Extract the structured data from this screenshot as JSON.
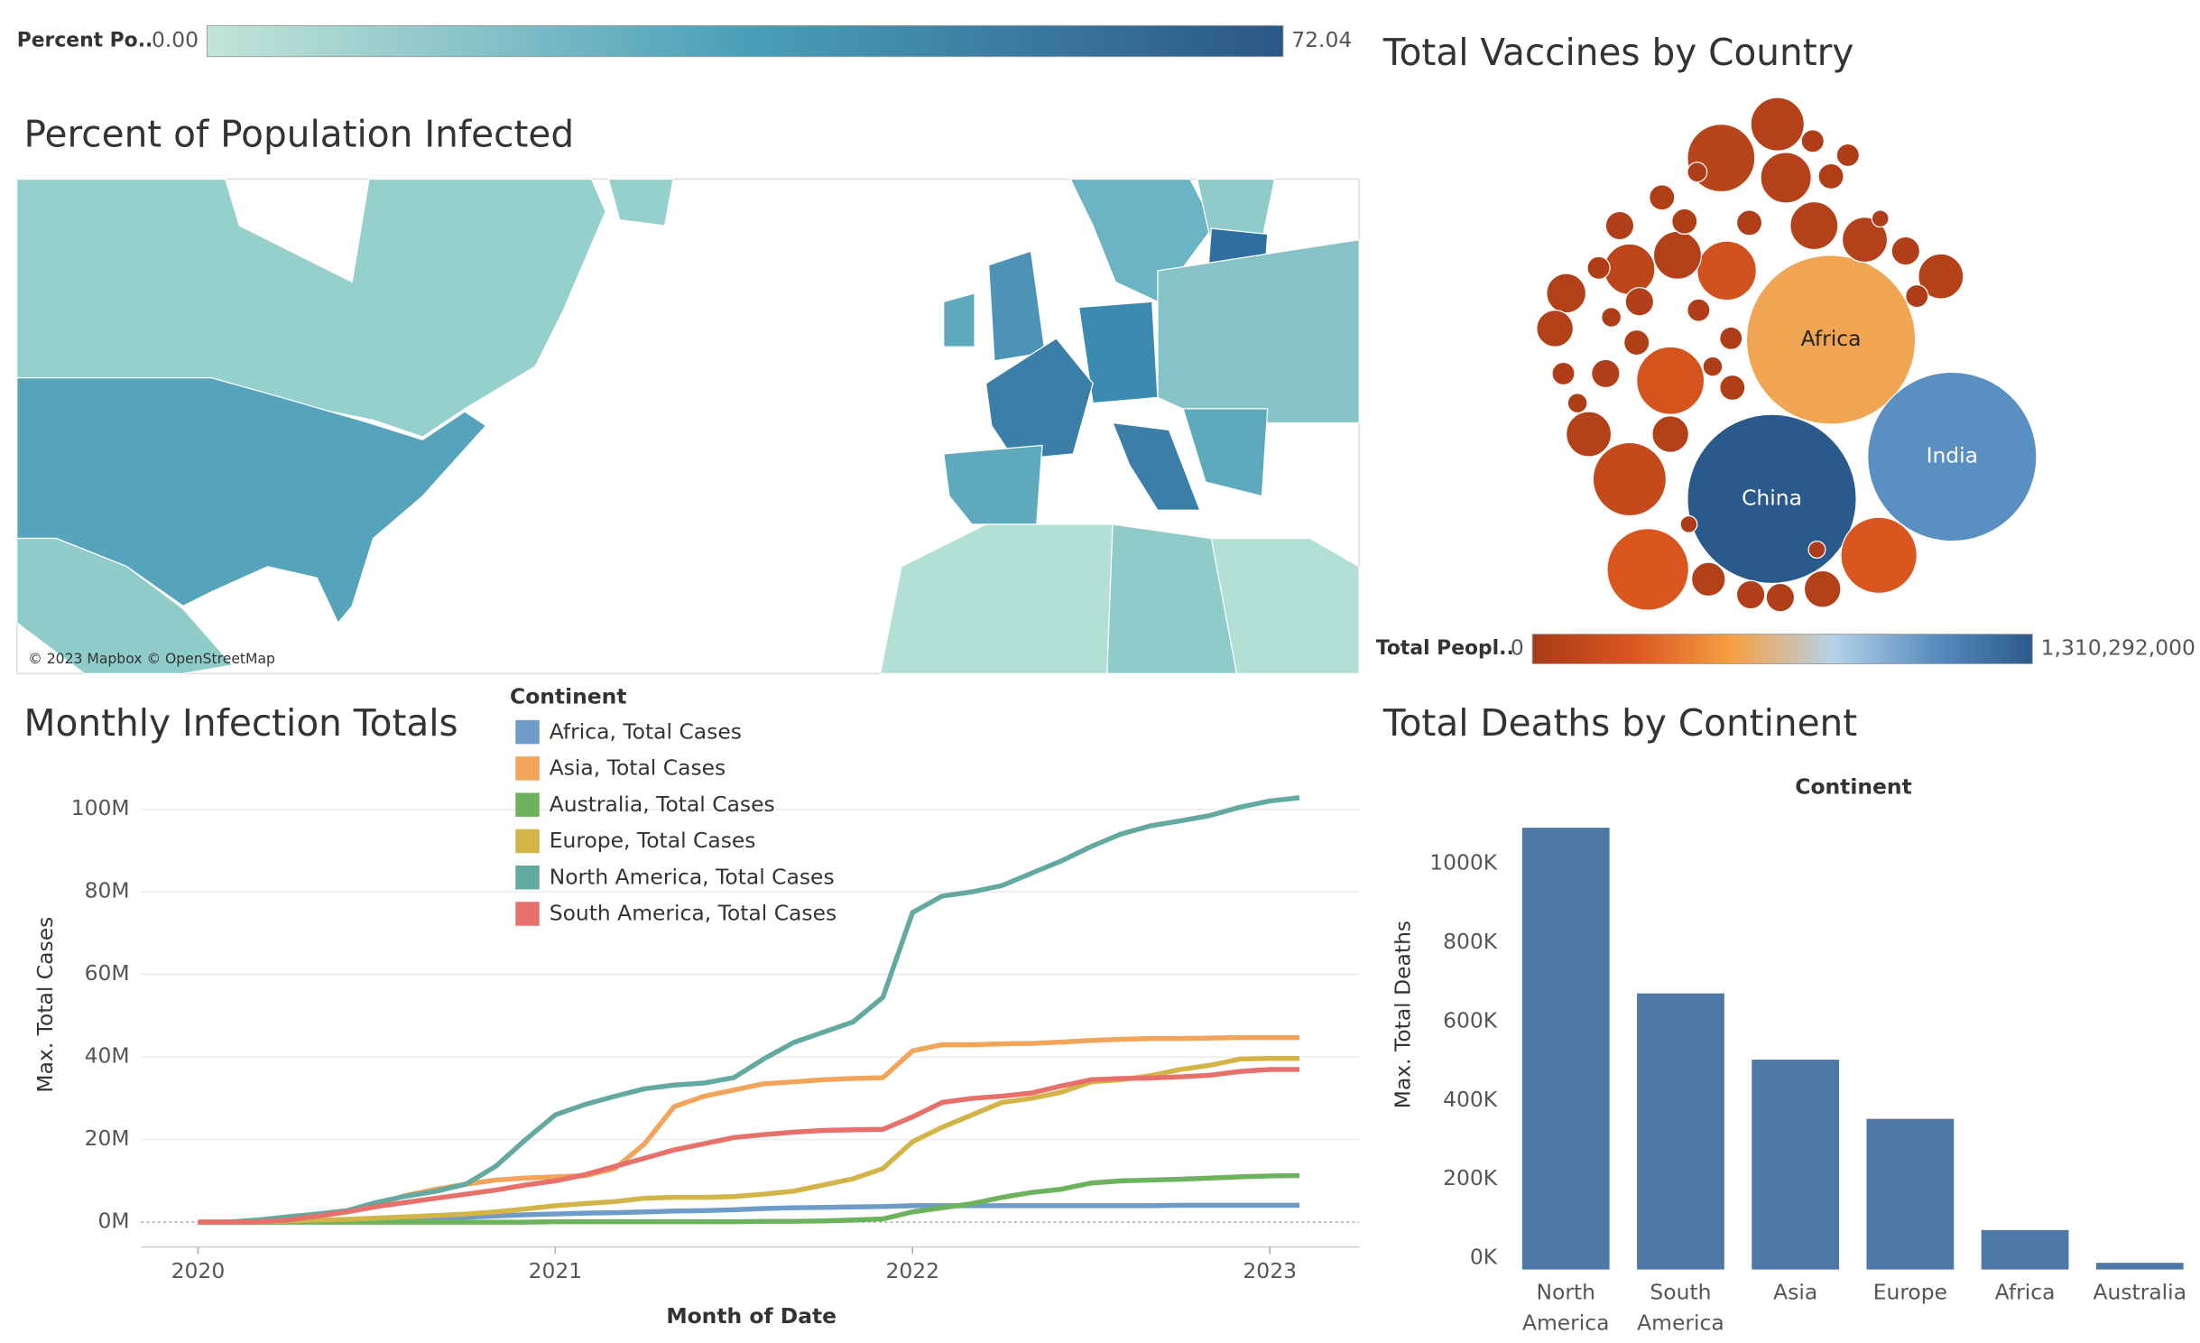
{
  "chart_data": [
    {
      "type": "map",
      "title": "Percent of Population Infected",
      "attribution": "© 2023 Mapbox © OpenStreetMap",
      "color_title": "Percent Po..",
      "color_ticks": [
        {
          "value": 0,
          "label": "0.00"
        },
        72.04
      ],
      "colors": [
        "#c3e5d8",
        "#4a9fb8",
        "#2b5787"
      ]
    },
    {
      "type": "bubble",
      "title": "Total Vaccines by Country",
      "categories": [
        "Africa",
        "China",
        "India",
        null,
        null,
        null,
        null,
        null,
        null,
        null,
        null,
        null,
        null,
        null,
        null,
        null,
        null,
        null,
        null,
        null,
        null,
        null,
        null,
        null,
        null,
        null,
        null,
        null,
        null,
        null,
        null,
        null,
        null,
        null,
        null,
        null,
        null,
        null,
        null,
        null,
        null,
        null,
        null,
        null,
        null,
        null,
        null,
        null
      ],
      "values": [
        550000000,
        1310292000,
        1050000000,
        260000000,
        260000000,
        240000000,
        220000000,
        150000000,
        110000000,
        90000000,
        70000000,
        70000000,
        70000000,
        70000000,
        70000000,
        70000000,
        60000000,
        60000000,
        70000000,
        60000000,
        60000000,
        60000000,
        50000000,
        50000000,
        50000000,
        50000000,
        45000000,
        50000000,
        45000000,
        50000000,
        45000000,
        45000000,
        45000000,
        45000000,
        40000000,
        40000000,
        40000000,
        40000000,
        40000000,
        40000000,
        40000000,
        35000000,
        35000000,
        30000000,
        30000000,
        30000000,
        35000000,
        35000000
      ],
      "sizes": [
        2000000000,
        2000000000,
        2000000000,
        467000000,
        405000000,
        320000000,
        245000000,
        375000000,
        180000000,
        320000000,
        200000000,
        180000000,
        160000000,
        160000000,
        142000000,
        142000000,
        109000000,
        94000000,
        142000000,
        94000000,
        80000000,
        94000000,
        56000000,
        56000000,
        56000000,
        56000000,
        45000000,
        56000000,
        45000000,
        56000000,
        45000000,
        45000000,
        45000000,
        45000000,
        36000000,
        36000000,
        36000000,
        36000000,
        36000000,
        36000000,
        36000000,
        27000000,
        27000000,
        20000000,
        20000000,
        20000000,
        27000000,
        27000000
      ],
      "color_title": "Total Peopl..",
      "color_ticks": [
        0,
        {
          "value": 1310292000,
          "label": "1,310,292,000"
        }
      ],
      "colors": [
        "#a73a17",
        "#d9561f",
        "#f6a043",
        "#b6d2e6",
        "#5a8fc1",
        "#2a5a8b"
      ]
    },
    {
      "type": "line",
      "title": "Monthly Infection Totals",
      "x_label": "Month of Date",
      "y_label": "Max. Total Cases",
      "legend_title": "Continent",
      "x": [
        2020,
        2020.083,
        2020.167,
        2020.25,
        2020.333,
        2020.417,
        2020.5,
        2020.583,
        2020.667,
        2020.75,
        2020.833,
        2020.917,
        2021,
        2021.083,
        2021.167,
        2021.25,
        2021.333,
        2021.417,
        2021.5,
        2021.583,
        2021.667,
        2021.75,
        2021.833,
        2021.917,
        2022,
        2022.083,
        2022.167,
        2022.25,
        2022.333,
        2022.417,
        2022.5,
        2022.583,
        2022.667,
        2022.75,
        2022.833,
        2022.917,
        2023,
        2023.083
      ],
      "xlim": [
        2019.84,
        2023.25
      ],
      "xticks": [
        2020,
        2021,
        2022,
        2023
      ],
      "ylim": [
        -6000000,
        110000000
      ],
      "yticks": [
        {
          "value": 0,
          "label": "0M"
        },
        {
          "value": 20000000,
          "label": "20M"
        },
        {
          "value": 40000000,
          "label": "40M"
        },
        {
          "value": 60000000,
          "label": "60M"
        },
        {
          "value": 80000000,
          "label": "80M"
        },
        {
          "value": 100000000,
          "label": "100M"
        }
      ],
      "grid": true,
      "series": [
        {
          "name": "Africa, Total Cases",
          "color": "#6f9bc8",
          "values": [
            0,
            0,
            0,
            100000,
            200000,
            300000,
            500000,
            800000,
            1000000,
            1200000,
            1500000,
            1800000,
            2000000,
            2200000,
            2300000,
            2500000,
            2700000,
            2800000,
            3000000,
            3300000,
            3500000,
            3600000,
            3700000,
            3800000,
            4000000,
            4000000,
            4000000,
            4000000,
            4000000,
            4000000,
            4000000,
            4000000,
            4000000,
            4100000,
            4100000,
            4100000,
            4100000,
            4100000
          ]
        },
        {
          "name": "Asia, Total Cases",
          "color": "#f2a45a",
          "values": [
            0,
            0,
            300000,
            800000,
            1500000,
            2500000,
            4500000,
            6500000,
            8000000,
            9200000,
            10200000,
            10700000,
            11000000,
            11300000,
            13000000,
            19000000,
            28000000,
            30500000,
            32000000,
            33500000,
            34000000,
            34500000,
            34800000,
            35000000,
            41500000,
            43000000,
            43000000,
            43200000,
            43300000,
            43600000,
            44000000,
            44300000,
            44500000,
            44500000,
            44600000,
            44700000,
            44700000,
            44700000
          ]
        },
        {
          "name": "Australia, Total Cases",
          "color": "#6db35d",
          "values": [
            0,
            0,
            0,
            0,
            0,
            0,
            0,
            0,
            0,
            0,
            0,
            0,
            100000,
            100000,
            100000,
            100000,
            100000,
            100000,
            100000,
            200000,
            200000,
            300000,
            500000,
            800000,
            2500000,
            3500000,
            4500000,
            6000000,
            7200000,
            8000000,
            9500000,
            10000000,
            10200000,
            10400000,
            10700000,
            11000000,
            11200000,
            11300000
          ]
        },
        {
          "name": "Europe, Total Cases",
          "color": "#d2b447",
          "values": [
            0,
            0,
            100000,
            300000,
            500000,
            700000,
            1000000,
            1300000,
            1600000,
            2000000,
            2500000,
            3200000,
            4000000,
            4500000,
            5000000,
            5800000,
            6000000,
            6000000,
            6200000,
            6800000,
            7500000,
            9000000,
            10500000,
            13000000,
            19500000,
            23000000,
            26000000,
            29000000,
            30000000,
            31500000,
            34000000,
            34500000,
            35500000,
            37000000,
            38000000,
            39500000,
            39700000,
            39700000
          ]
        },
        {
          "name": "North America, Total Cases",
          "color": "#62a9a1",
          "values": [
            0,
            0,
            500000,
            1300000,
            2000000,
            2800000,
            4800000,
            6300000,
            7500000,
            9200000,
            13500000,
            20000000,
            26000000,
            28500000,
            30500000,
            32300000,
            33200000,
            33700000,
            35000000,
            39500000,
            43500000,
            46000000,
            48500000,
            54500000,
            75000000,
            79000000,
            80000000,
            81500000,
            84500000,
            87500000,
            91000000,
            94000000,
            96000000,
            97200000,
            98500000,
            100500000,
            102000000,
            102800000
          ]
        },
        {
          "name": "South America, Total Cases",
          "color": "#e8706b",
          "values": [
            0,
            0,
            100000,
            500000,
            1500000,
            2500000,
            3800000,
            4800000,
            5800000,
            6800000,
            7800000,
            9000000,
            10000000,
            11500000,
            13500000,
            15500000,
            17500000,
            19000000,
            20500000,
            21200000,
            21800000,
            22200000,
            22400000,
            22500000,
            25500000,
            29000000,
            30000000,
            30500000,
            31300000,
            33000000,
            34500000,
            34800000,
            34900000,
            35200000,
            35600000,
            36500000,
            37000000,
            37000000
          ]
        }
      ]
    },
    {
      "type": "bar",
      "title": "Total Deaths by Continent",
      "x_label": "Continent",
      "y_label": "Max. Total Deaths",
      "categories": [
        "North America",
        "South America",
        "Asia",
        "Europe",
        "Africa",
        "Australia"
      ],
      "values": [
        1120000,
        700000,
        532000,
        382000,
        100000,
        17000
      ],
      "color": "#4e79a7",
      "ylim": [
        0,
        1175000
      ],
      "yticks": [
        {
          "value": 0,
          "label": "0K"
        },
        {
          "value": 200000,
          "label": "200K"
        },
        {
          "value": 400000,
          "label": "400K"
        },
        {
          "value": 600000,
          "label": "600K"
        },
        {
          "value": 800000,
          "label": "800K"
        },
        {
          "value": 1000000,
          "label": "1000K"
        }
      ]
    }
  ]
}
